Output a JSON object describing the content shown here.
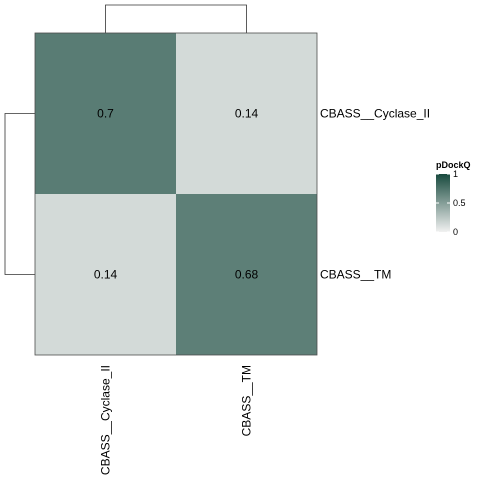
{
  "chart_data": {
    "type": "heatmap",
    "rows": [
      "CBASS__Cyclase_II",
      "CBASS__TM"
    ],
    "columns": [
      "CBASS__Cyclase_II",
      "CBASS__TM"
    ],
    "values": [
      [
        0.7,
        0.14
      ],
      [
        0.14,
        0.68
      ]
    ],
    "cell_labels": [
      [
        "0.7",
        "0.14"
      ],
      [
        "0.14",
        "0.68"
      ]
    ],
    "dendrograms": {
      "rows": true,
      "columns": true
    },
    "color_scale": {
      "title": "pDockQ",
      "min": 0,
      "max": 1,
      "low_color": "#f1f1f1",
      "high_color": "#184a3e",
      "ticks": [
        0,
        0.5,
        1
      ],
      "tick_labels": [
        "0",
        "0.5",
        "1"
      ]
    },
    "legend_position": "right"
  }
}
